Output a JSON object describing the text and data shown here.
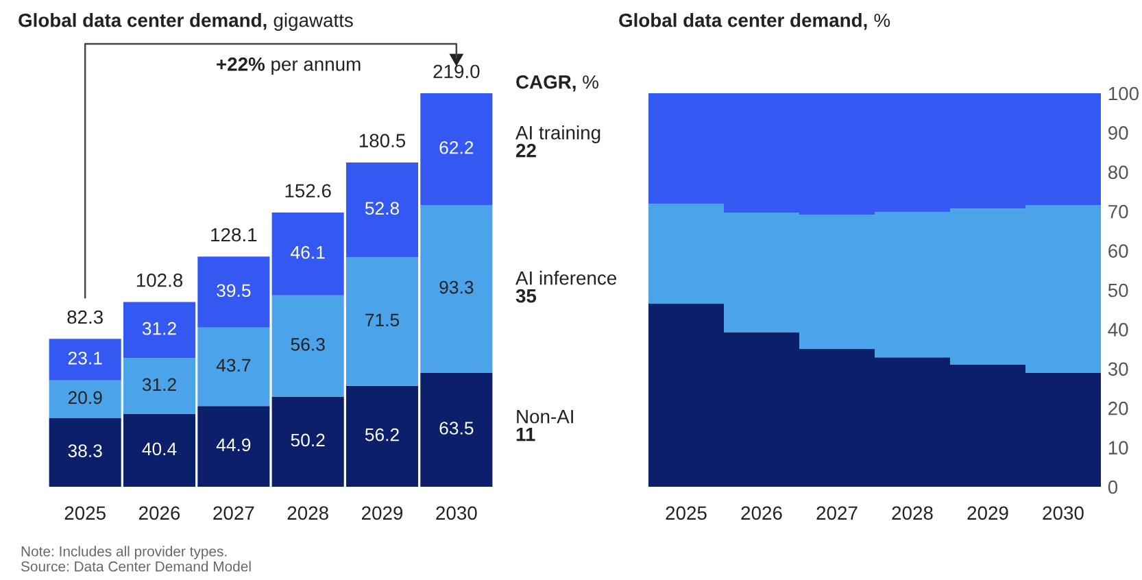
{
  "chart_data": [
    {
      "type": "bar",
      "stacked": true,
      "title": "Global data center demand, gigawatts",
      "categories": [
        "2025",
        "2026",
        "2027",
        "2028",
        "2029",
        "2030"
      ],
      "data_labels": true,
      "series": [
        {
          "name": "Non-AI",
          "color": "#0b1f6b",
          "values": [
            38.3,
            40.4,
            44.9,
            50.2,
            56.2,
            63.5
          ]
        },
        {
          "name": "AI inference",
          "color": "#4ba3e9",
          "values": [
            20.9,
            31.2,
            43.7,
            56.3,
            71.5,
            93.3
          ]
        },
        {
          "name": "AI training",
          "color": "#3459f2",
          "values": [
            23.1,
            31.2,
            39.5,
            46.1,
            52.8,
            62.2
          ]
        }
      ],
      "totals": [
        "82.3",
        "102.8",
        "128.1",
        "152.6",
        "180.5",
        "219.0"
      ],
      "annotations": [
        "+22% per annum",
        "CAGR, %",
        "22",
        "35",
        "11",
        "Note: Includes all provider types.",
        "Source: Data Center Demand Model"
      ]
    },
    {
      "type": "bar",
      "stacked": true,
      "title": "Global data center demand, %",
      "categories": [
        "2025",
        "2026",
        "2027",
        "2028",
        "2029",
        "2030"
      ],
      "series": [
        {
          "color": "#0b1f6b",
          "values": [
            46.5,
            39.3,
            35.0,
            32.9,
            31.1,
            29.0
          ]
        },
        {
          "color": "#4ba3e9",
          "values": [
            25.4,
            30.4,
            34.1,
            36.9,
            39.6,
            42.6
          ]
        },
        {
          "color": "#3459f2",
          "values": [
            28.1,
            30.3,
            30.9,
            30.2,
            29.3,
            28.4
          ]
        }
      ],
      "ylim": [
        0,
        100
      ],
      "yticks": [
        0,
        10,
        20,
        30,
        40,
        50,
        60,
        70,
        80,
        90,
        100
      ]
    }
  ]
}
